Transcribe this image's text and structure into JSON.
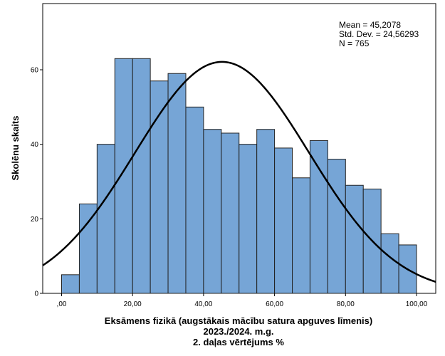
{
  "chart_data": {
    "type": "bar",
    "subtype": "histogram",
    "bin_width": 5,
    "bins": [
      {
        "start": 0,
        "end": 5,
        "count": 5
      },
      {
        "start": 5,
        "end": 10,
        "count": 24
      },
      {
        "start": 10,
        "end": 15,
        "count": 40
      },
      {
        "start": 15,
        "end": 20,
        "count": 63
      },
      {
        "start": 20,
        "end": 25,
        "count": 63
      },
      {
        "start": 25,
        "end": 30,
        "count": 57
      },
      {
        "start": 30,
        "end": 35,
        "count": 59
      },
      {
        "start": 35,
        "end": 40,
        "count": 50
      },
      {
        "start": 40,
        "end": 45,
        "count": 44
      },
      {
        "start": 45,
        "end": 50,
        "count": 43
      },
      {
        "start": 50,
        "end": 55,
        "count": 40
      },
      {
        "start": 55,
        "end": 60,
        "count": 44
      },
      {
        "start": 60,
        "end": 65,
        "count": 39
      },
      {
        "start": 65,
        "end": 70,
        "count": 31
      },
      {
        "start": 70,
        "end": 75,
        "count": 41
      },
      {
        "start": 75,
        "end": 80,
        "count": 36
      },
      {
        "start": 80,
        "end": 85,
        "count": 29
      },
      {
        "start": 85,
        "end": 90,
        "count": 28
      },
      {
        "start": 90,
        "end": 95,
        "count": 16
      },
      {
        "start": 95,
        "end": 100,
        "count": 13
      }
    ],
    "normal_curve": {
      "mean": 45.2078,
      "sd": 24.56293,
      "n": 765
    },
    "xlabel_lines": [
      "Eksāmens fizikā (augstākais mācību satura apguves līmenis)",
      "2023./2024. m.g.",
      "2. daļas vērtējums %"
    ],
    "ylabel": "Skolēnu skaits",
    "x_ticks": [
      0,
      20,
      40,
      60,
      80,
      100
    ],
    "x_tick_labels": [
      ",00",
      "20,00",
      "40,00",
      "60,00",
      "80,00",
      "100,00"
    ],
    "y_ticks": [
      0,
      20,
      40,
      60
    ],
    "y_tick_labels": [
      "0",
      "20",
      "40",
      "60"
    ],
    "xlim": [
      -5.5,
      105.5
    ],
    "ylim": [
      0,
      78
    ],
    "stats_text": [
      "Mean = 45,2078",
      "Std. Dev. = 24,56293",
      "N = 765"
    ],
    "legend_position": "top-right",
    "grid": false,
    "colors": {
      "bar_fill": "#76a5d6",
      "bar_stroke": "#222222",
      "curve": "#000000"
    }
  }
}
